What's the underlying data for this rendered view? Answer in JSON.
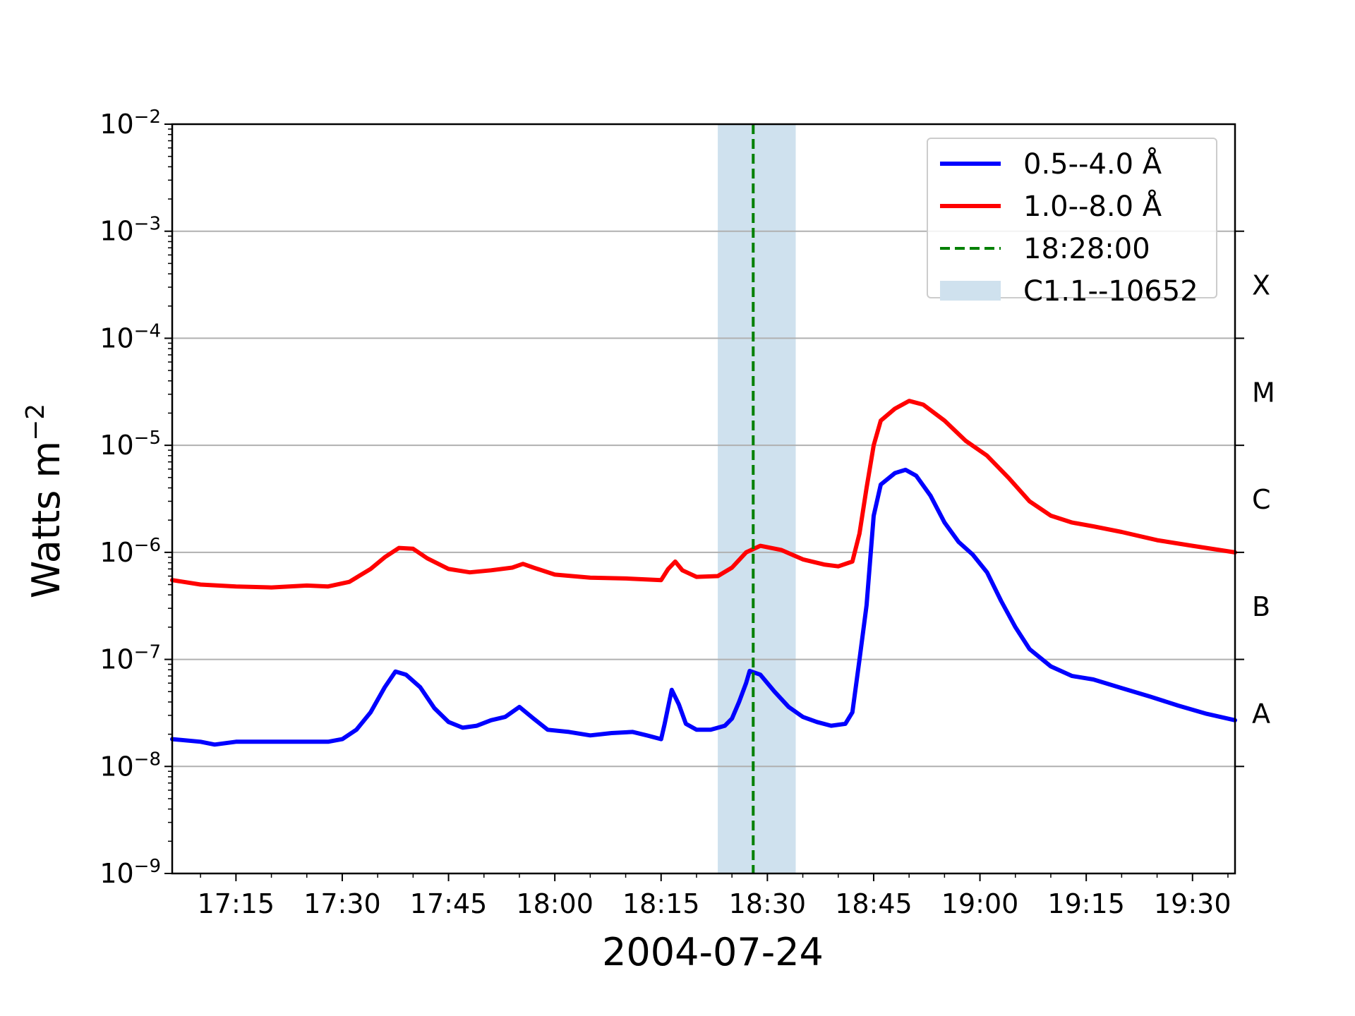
{
  "chart_data": {
    "type": "line",
    "title": "",
    "xlabel": "2004-07-24",
    "ylabel": "Watts m^-2",
    "ylabel_parts": {
      "base": "Watts m",
      "sup": "−2"
    },
    "yscale": "log",
    "ylim": [
      1e-09,
      0.01
    ],
    "xlim": [
      "17:06",
      "19:36"
    ],
    "x_ticks": [
      "17:15",
      "17:30",
      "17:45",
      "18:00",
      "18:15",
      "18:30",
      "18:45",
      "19:00",
      "19:15",
      "19:30"
    ],
    "y_ticks": [
      {
        "base": "10",
        "exp": "−9",
        "value": 1e-09
      },
      {
        "base": "10",
        "exp": "−8",
        "value": 1e-08
      },
      {
        "base": "10",
        "exp": "−7",
        "value": 1e-07
      },
      {
        "base": "10",
        "exp": "−6",
        "value": 1e-06
      },
      {
        "base": "10",
        "exp": "−5",
        "value": 1e-05
      },
      {
        "base": "10",
        "exp": "−4",
        "value": 0.0001
      },
      {
        "base": "10",
        "exp": "−3",
        "value": 0.001
      },
      {
        "base": "10",
        "exp": "−2",
        "value": 0.01
      }
    ],
    "grid": "horizontal",
    "legend_position": "top-right",
    "flare_classes": [
      {
        "label": "A",
        "value": 3.16e-08
      },
      {
        "label": "B",
        "value": 3.16e-07
      },
      {
        "label": "C",
        "value": 3.16e-06
      },
      {
        "label": "M",
        "value": 3.16e-05
      },
      {
        "label": "X",
        "value": 0.000316
      }
    ],
    "class_ticks": [
      1e-08,
      1e-07,
      1e-06,
      1e-05,
      0.0001,
      0.001
    ],
    "series": [
      {
        "name": "0.5--4.0 Å",
        "color": "#0000ff",
        "points": [
          [
            "17:06",
            1.8e-08
          ],
          [
            "17:10",
            1.7e-08
          ],
          [
            "17:12",
            1.6e-08
          ],
          [
            "17:15",
            1.7e-08
          ],
          [
            "17:20",
            1.7e-08
          ],
          [
            "17:25",
            1.7e-08
          ],
          [
            "17:28",
            1.7e-08
          ],
          [
            "17:30",
            1.8e-08
          ],
          [
            "17:32",
            2.2e-08
          ],
          [
            "17:34",
            3.2e-08
          ],
          [
            "17:36",
            5.5e-08
          ],
          [
            "17:37.5",
            7.7e-08
          ],
          [
            "17:39",
            7.2e-08
          ],
          [
            "17:41",
            5.5e-08
          ],
          [
            "17:43",
            3.5e-08
          ],
          [
            "17:45",
            2.6e-08
          ],
          [
            "17:47",
            2.3e-08
          ],
          [
            "17:49",
            2.4e-08
          ],
          [
            "17:51",
            2.7e-08
          ],
          [
            "17:53",
            2.9e-08
          ],
          [
            "17:55",
            3.6e-08
          ],
          [
            "17:57",
            2.8e-08
          ],
          [
            "17:59",
            2.2e-08
          ],
          [
            "18:02",
            2.1e-08
          ],
          [
            "18:05",
            1.95e-08
          ],
          [
            "18:08",
            2.05e-08
          ],
          [
            "18:11",
            2.1e-08
          ],
          [
            "18:13",
            1.95e-08
          ],
          [
            "18:15",
            1.8e-08
          ],
          [
            "18:15.5",
            2.5e-08
          ],
          [
            "18:16.5",
            5.2e-08
          ],
          [
            "18:17.5",
            3.8e-08
          ],
          [
            "18:18.5",
            2.5e-08
          ],
          [
            "18:20",
            2.2e-08
          ],
          [
            "18:22",
            2.2e-08
          ],
          [
            "18:24",
            2.4e-08
          ],
          [
            "18:25",
            2.8e-08
          ],
          [
            "18:26",
            4e-08
          ],
          [
            "18:27",
            6e-08
          ],
          [
            "18:27.5",
            7.8e-08
          ],
          [
            "18:29",
            7.2e-08
          ],
          [
            "18:31",
            5e-08
          ],
          [
            "18:33",
            3.6e-08
          ],
          [
            "18:35",
            2.9e-08
          ],
          [
            "18:37",
            2.6e-08
          ],
          [
            "18:39",
            2.4e-08
          ],
          [
            "18:41",
            2.5e-08
          ],
          [
            "18:42",
            3.2e-08
          ],
          [
            "18:43",
            1e-07
          ],
          [
            "18:44",
            3.2e-07
          ],
          [
            "18:45",
            2.2e-06
          ],
          [
            "18:46",
            4.3e-06
          ],
          [
            "18:48",
            5.5e-06
          ],
          [
            "18:49.5",
            5.9e-06
          ],
          [
            "18:51",
            5.2e-06
          ],
          [
            "18:53",
            3.4e-06
          ],
          [
            "18:55",
            1.9e-06
          ],
          [
            "18:57",
            1.25e-06
          ],
          [
            "18:59",
            9.5e-07
          ],
          [
            "19:01",
            6.5e-07
          ],
          [
            "19:03",
            3.5e-07
          ],
          [
            "19:05",
            2e-07
          ],
          [
            "19:07",
            1.25e-07
          ],
          [
            "19:10",
            8.6e-08
          ],
          [
            "19:13",
            7e-08
          ],
          [
            "19:16",
            6.5e-08
          ],
          [
            "19:20",
            5.4e-08
          ],
          [
            "19:24",
            4.5e-08
          ],
          [
            "19:28",
            3.7e-08
          ],
          [
            "19:32",
            3.1e-08
          ],
          [
            "19:36",
            2.7e-08
          ]
        ]
      },
      {
        "name": "1.0--8.0 Å",
        "color": "#ff0000",
        "points": [
          [
            "17:06",
            5.5e-07
          ],
          [
            "17:10",
            5e-07
          ],
          [
            "17:15",
            4.8e-07
          ],
          [
            "17:20",
            4.7e-07
          ],
          [
            "17:25",
            4.9e-07
          ],
          [
            "17:28",
            4.8e-07
          ],
          [
            "17:31",
            5.3e-07
          ],
          [
            "17:34",
            7e-07
          ],
          [
            "17:36",
            9e-07
          ],
          [
            "17:38",
            1.1e-06
          ],
          [
            "17:40",
            1.08e-06
          ],
          [
            "17:42",
            8.8e-07
          ],
          [
            "17:45",
            7e-07
          ],
          [
            "17:48",
            6.5e-07
          ],
          [
            "17:51",
            6.8e-07
          ],
          [
            "17:54",
            7.2e-07
          ],
          [
            "17:55.5",
            7.8e-07
          ],
          [
            "17:57",
            7.2e-07
          ],
          [
            "18:00",
            6.2e-07
          ],
          [
            "18:05",
            5.8e-07
          ],
          [
            "18:10",
            5.7e-07
          ],
          [
            "18:15",
            5.5e-07
          ],
          [
            "18:16",
            7e-07
          ],
          [
            "18:17",
            8.2e-07
          ],
          [
            "18:18",
            6.8e-07
          ],
          [
            "18:20",
            5.9e-07
          ],
          [
            "18:23",
            6e-07
          ],
          [
            "18:25",
            7.2e-07
          ],
          [
            "18:27",
            1e-06
          ],
          [
            "18:29",
            1.15e-06
          ],
          [
            "18:32",
            1.05e-06
          ],
          [
            "18:35",
            8.6e-07
          ],
          [
            "18:38",
            7.7e-07
          ],
          [
            "18:40",
            7.4e-07
          ],
          [
            "18:42",
            8.2e-07
          ],
          [
            "18:43",
            1.5e-06
          ],
          [
            "18:44",
            4e-06
          ],
          [
            "18:45",
            1e-05
          ],
          [
            "18:46",
            1.7e-05
          ],
          [
            "18:48",
            2.2e-05
          ],
          [
            "18:50",
            2.6e-05
          ],
          [
            "18:52",
            2.4e-05
          ],
          [
            "18:55",
            1.7e-05
          ],
          [
            "18:58",
            1.1e-05
          ],
          [
            "19:01",
            8e-06
          ],
          [
            "19:04",
            5e-06
          ],
          [
            "19:07",
            3e-06
          ],
          [
            "19:10",
            2.2e-06
          ],
          [
            "19:13",
            1.9e-06
          ],
          [
            "19:16",
            1.75e-06
          ],
          [
            "19:20",
            1.55e-06
          ],
          [
            "19:25",
            1.3e-06
          ],
          [
            "19:30",
            1.15e-06
          ],
          [
            "19:36",
            1e-06
          ]
        ]
      }
    ],
    "vline": {
      "label": "18:28:00",
      "x": "18:28",
      "color": "#008000",
      "style": "dashed"
    },
    "span": {
      "label": "C1.1--10652",
      "x_start": "18:23",
      "x_end": "18:34",
      "color": "#cfe1ee"
    }
  }
}
